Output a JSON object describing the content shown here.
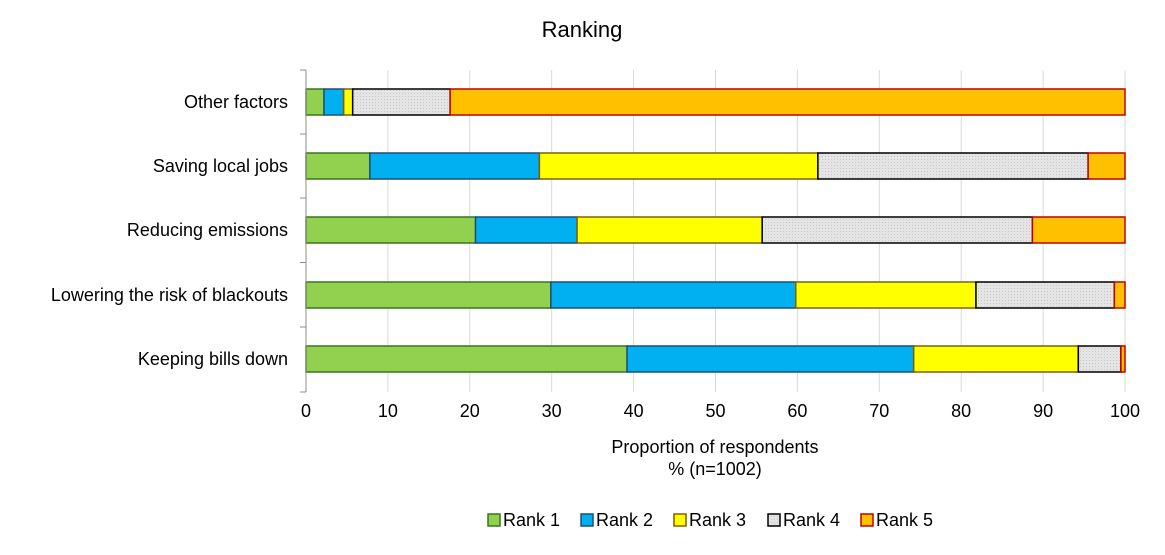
{
  "chart_data": {
    "type": "bar",
    "orientation": "horizontal",
    "stacked": true,
    "title": "Ranking",
    "xlabel": [
      "Proportion of respondents",
      "% (n=1002)"
    ],
    "ylabel": "",
    "xlim": [
      0,
      100
    ],
    "xticks": [
      0,
      10,
      20,
      30,
      40,
      50,
      60,
      70,
      80,
      90,
      100
    ],
    "grid": "vertical",
    "legend_position": "bottom",
    "categories": [
      "Other factors",
      "Saving local jobs",
      "Reducing emissions",
      "Lowering the risk of blackouts",
      "Keeping bills down"
    ],
    "series": [
      {
        "name": "Rank 1",
        "color": "#92d050",
        "border": "#38761d",
        "values": [
          2.2,
          7.8,
          20.7,
          29.9,
          39.2
        ]
      },
      {
        "name": "Rank 2",
        "color": "#00b0f0",
        "border": "#1f4e79",
        "values": [
          2.4,
          20.7,
          12.4,
          29.9,
          35.0
        ]
      },
      {
        "name": "Rank 3",
        "color": "#ffff00",
        "border": "#7f6000",
        "values": [
          1.1,
          34.0,
          22.6,
          22.0,
          20.1
        ]
      },
      {
        "name": "Rank 4",
        "color": "#e0e0e0",
        "border": "#000000",
        "values": [
          11.9,
          33.0,
          33.0,
          16.9,
          5.2
        ]
      },
      {
        "name": "Rank 5",
        "color": "#ffc000",
        "border": "#c00000",
        "values": [
          82.4,
          4.5,
          11.3,
          1.3,
          0.5
        ]
      }
    ]
  }
}
